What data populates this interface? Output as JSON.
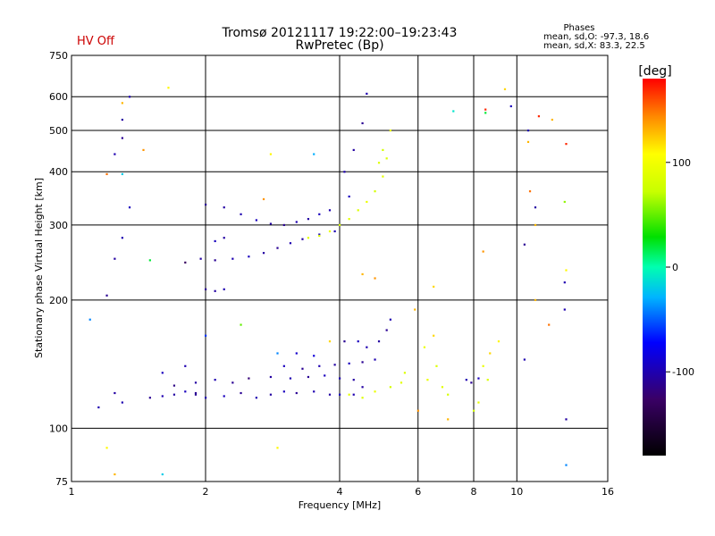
{
  "status_label": "HV Off",
  "colors": {
    "status": "#cc0000",
    "grid": "#000000"
  },
  "chart_data": {
    "type": "scatter",
    "title": "Tromsø 20121117 19:22:00–19:23:43",
    "subtitle": "RwPretec (Bp)",
    "xlabel": "Frequency [MHz]",
    "ylabel": "Stationary phase Virtual Height [km]",
    "x_scale": "log",
    "y_scale": "log",
    "xlim": [
      1,
      16
    ],
    "ylim": [
      75,
      750
    ],
    "x_ticks": [
      1,
      2,
      4,
      6,
      8,
      10,
      16
    ],
    "y_ticks": [
      75,
      100,
      200,
      300,
      400,
      500,
      600,
      750
    ],
    "grid": true,
    "stats": {
      "header": "Phases",
      "line_o": "mean, sd,O:  -97.3,  18.6",
      "line_x": "mean, sd,X:   83.3,  22.5"
    },
    "colorbar": {
      "label": "[deg]",
      "range": [
        -180,
        180
      ],
      "ticks": [
        100,
        0,
        -100
      ]
    },
    "series": [
      {
        "points": [
          {
            "f": 1.5,
            "h": 118,
            "p": -110
          },
          {
            "f": 1.6,
            "h": 119,
            "p": -100
          },
          {
            "f": 1.7,
            "h": 120,
            "p": -105
          },
          {
            "f": 1.8,
            "h": 122,
            "p": -95
          },
          {
            "f": 1.9,
            "h": 121,
            "p": -110
          },
          {
            "f": 2.0,
            "h": 118,
            "p": -100
          },
          {
            "f": 2.2,
            "h": 119,
            "p": -95
          },
          {
            "f": 2.4,
            "h": 121,
            "p": -110
          },
          {
            "f": 2.6,
            "h": 118,
            "p": -100
          },
          {
            "f": 2.8,
            "h": 120,
            "p": -105
          },
          {
            "f": 3.0,
            "h": 122,
            "p": -95
          },
          {
            "f": 3.2,
            "h": 121,
            "p": -110
          },
          {
            "f": 3.5,
            "h": 122,
            "p": -100
          },
          {
            "f": 3.8,
            "h": 120,
            "p": -105
          },
          {
            "f": 4.0,
            "h": 120,
            "p": -95
          },
          {
            "f": 1.7,
            "h": 126,
            "p": -115
          },
          {
            "f": 1.9,
            "h": 128,
            "p": -105
          },
          {
            "f": 2.1,
            "h": 130,
            "p": -100
          },
          {
            "f": 2.3,
            "h": 128,
            "p": -110
          },
          {
            "f": 2.5,
            "h": 131,
            "p": -120
          },
          {
            "f": 2.8,
            "h": 132,
            "p": -105
          },
          {
            "f": 3.1,
            "h": 131,
            "p": -100
          },
          {
            "f": 3.4,
            "h": 132,
            "p": -110
          },
          {
            "f": 3.7,
            "h": 133,
            "p": -95
          },
          {
            "f": 4.0,
            "h": 131,
            "p": -100
          },
          {
            "f": 4.3,
            "h": 130,
            "p": -105
          },
          {
            "f": 3.0,
            "h": 140,
            "p": -95
          },
          {
            "f": 3.3,
            "h": 138,
            "p": -110
          },
          {
            "f": 3.6,
            "h": 140,
            "p": -100
          },
          {
            "f": 3.9,
            "h": 141,
            "p": -105
          },
          {
            "f": 4.2,
            "h": 142,
            "p": -95
          },
          {
            "f": 4.5,
            "h": 143,
            "p": -110
          },
          {
            "f": 4.8,
            "h": 145,
            "p": -100
          },
          {
            "f": 3.2,
            "h": 150,
            "p": -90
          },
          {
            "f": 3.5,
            "h": 148,
            "p": -85
          },
          {
            "f": 4.6,
            "h": 155,
            "p": -100
          },
          {
            "f": 4.9,
            "h": 160,
            "p": -105
          },
          {
            "f": 5.1,
            "h": 170,
            "p": -110
          },
          {
            "f": 5.2,
            "h": 180,
            "p": -100
          },
          {
            "f": 1.6,
            "h": 135,
            "p": -95
          },
          {
            "f": 1.8,
            "h": 140,
            "p": -100
          },
          {
            "f": 1.9,
            "h": 120,
            "p": -110
          },
          {
            "f": 1.3,
            "h": 115,
            "p": -100
          },
          {
            "f": 1.15,
            "h": 112,
            "p": -100
          },
          {
            "f": 1.25,
            "h": 121,
            "p": -105
          },
          {
            "f": 4.1,
            "h": 160,
            "p": -110
          },
          {
            "f": 4.4,
            "h": 160,
            "p": -95
          },
          {
            "f": 1.95,
            "h": 250,
            "p": -105
          },
          {
            "f": 2.1,
            "h": 248,
            "p": -110
          },
          {
            "f": 2.3,
            "h": 250,
            "p": -100
          },
          {
            "f": 2.5,
            "h": 253,
            "p": -95
          },
          {
            "f": 2.7,
            "h": 258,
            "p": -105
          },
          {
            "f": 2.9,
            "h": 265,
            "p": -110
          },
          {
            "f": 3.1,
            "h": 272,
            "p": -100
          },
          {
            "f": 3.3,
            "h": 278,
            "p": -105
          },
          {
            "f": 3.6,
            "h": 285,
            "p": -95
          },
          {
            "f": 3.9,
            "h": 290,
            "p": -100
          },
          {
            "f": 2.0,
            "h": 335,
            "p": -110
          },
          {
            "f": 2.2,
            "h": 330,
            "p": -105
          },
          {
            "f": 2.4,
            "h": 318,
            "p": -100
          },
          {
            "f": 2.6,
            "h": 308,
            "p": -95
          },
          {
            "f": 2.8,
            "h": 302,
            "p": -105
          },
          {
            "f": 3.0,
            "h": 300,
            "p": -110
          },
          {
            "f": 3.2,
            "h": 305,
            "p": -100
          },
          {
            "f": 3.4,
            "h": 310,
            "p": -105
          },
          {
            "f": 3.6,
            "h": 318,
            "p": -95
          },
          {
            "f": 3.8,
            "h": 325,
            "p": -100
          },
          {
            "f": 2.0,
            "h": 212,
            "p": -110
          },
          {
            "f": 2.1,
            "h": 210,
            "p": -105
          },
          {
            "f": 2.2,
            "h": 212,
            "p": -100
          },
          {
            "f": 2.1,
            "h": 275,
            "p": -95
          },
          {
            "f": 2.2,
            "h": 280,
            "p": -105
          },
          {
            "f": 4.1,
            "h": 400,
            "p": -100
          },
          {
            "f": 4.3,
            "h": 450,
            "p": -105
          },
          {
            "f": 4.5,
            "h": 520,
            "p": -110
          },
          {
            "f": 4.6,
            "h": 610,
            "p": -100
          },
          {
            "f": 4.2,
            "h": 350,
            "p": -95
          },
          {
            "f": 1.35,
            "h": 600,
            "p": -100
          },
          {
            "f": 1.3,
            "h": 530,
            "p": -105
          },
          {
            "f": 1.3,
            "h": 480,
            "p": -110
          },
          {
            "f": 1.25,
            "h": 440,
            "p": -100
          },
          {
            "f": 1.35,
            "h": 330,
            "p": -95
          },
          {
            "f": 1.3,
            "h": 280,
            "p": -100
          },
          {
            "f": 1.25,
            "h": 250,
            "p": -105
          },
          {
            "f": 1.2,
            "h": 205,
            "p": -110
          },
          {
            "f": 4.3,
            "h": 120,
            "p": -100
          },
          {
            "f": 4.5,
            "h": 125,
            "p": -105
          },
          {
            "f": 7.7,
            "h": 130,
            "p": -100
          },
          {
            "f": 7.9,
            "h": 128,
            "p": -110
          },
          {
            "f": 8.2,
            "h": 131,
            "p": -95
          },
          {
            "f": 12.8,
            "h": 220,
            "p": -100
          },
          {
            "f": 12.9,
            "h": 105,
            "p": -105
          },
          {
            "f": 10.6,
            "h": 500,
            "p": -100
          },
          {
            "f": 10.4,
            "h": 270,
            "p": -110
          },
          {
            "f": 10.4,
            "h": 145,
            "p": -100
          },
          {
            "f": 9.7,
            "h": 570,
            "p": -95
          },
          {
            "f": 11.0,
            "h": 330,
            "p": -105
          },
          {
            "f": 12.8,
            "h": 190,
            "p": -100
          },
          {
            "f": 3.4,
            "h": 280,
            "p": 90
          },
          {
            "f": 3.6,
            "h": 283,
            "p": 85
          },
          {
            "f": 3.8,
            "h": 290,
            "p": 95
          },
          {
            "f": 4.0,
            "h": 300,
            "p": 80
          },
          {
            "f": 4.2,
            "h": 310,
            "p": 90
          },
          {
            "f": 4.4,
            "h": 325,
            "p": 85
          },
          {
            "f": 4.6,
            "h": 340,
            "p": 95
          },
          {
            "f": 4.8,
            "h": 360,
            "p": 80
          },
          {
            "f": 5.0,
            "h": 390,
            "p": 90
          },
          {
            "f": 5.1,
            "h": 430,
            "p": 85
          },
          {
            "f": 5.2,
            "h": 500,
            "p": 95
          },
          {
            "f": 5.0,
            "h": 450,
            "p": 80
          },
          {
            "f": 4.9,
            "h": 420,
            "p": 85
          },
          {
            "f": 4.2,
            "h": 120,
            "p": 90
          },
          {
            "f": 4.5,
            "h": 118,
            "p": 85
          },
          {
            "f": 4.8,
            "h": 122,
            "p": 95
          },
          {
            "f": 5.2,
            "h": 125,
            "p": 80
          },
          {
            "f": 5.5,
            "h": 128,
            "p": 90
          },
          {
            "f": 5.6,
            "h": 135,
            "p": 85
          },
          {
            "f": 6.3,
            "h": 130,
            "p": 95
          },
          {
            "f": 6.6,
            "h": 140,
            "p": 85
          },
          {
            "f": 6.8,
            "h": 125,
            "p": 90
          },
          {
            "f": 7.0,
            "h": 120,
            "p": 80
          },
          {
            "f": 8.4,
            "h": 140,
            "p": 95
          },
          {
            "f": 8.6,
            "h": 130,
            "p": 85
          },
          {
            "f": 8.2,
            "h": 115,
            "p": 90
          },
          {
            "f": 8.0,
            "h": 110,
            "p": 80
          },
          {
            "f": 6.2,
            "h": 155,
            "p": 95
          },
          {
            "f": 5.9,
            "h": 190,
            "p": 130
          },
          {
            "f": 6.5,
            "h": 165,
            "p": 120
          },
          {
            "f": 7.0,
            "h": 105,
            "p": 130
          },
          {
            "f": 1.65,
            "h": 630,
            "p": 110
          },
          {
            "f": 1.3,
            "h": 580,
            "p": 130
          },
          {
            "f": 1.45,
            "h": 450,
            "p": 140
          },
          {
            "f": 1.2,
            "h": 395,
            "p": 150
          },
          {
            "f": 2.8,
            "h": 440,
            "p": 110
          },
          {
            "f": 2.7,
            "h": 345,
            "p": 140
          },
          {
            "f": 1.2,
            "h": 90,
            "p": 110
          },
          {
            "f": 1.25,
            "h": 78,
            "p": 130
          },
          {
            "f": 1.6,
            "h": 78,
            "p": -20
          },
          {
            "f": 2.9,
            "h": 90,
            "p": 110
          },
          {
            "f": 1.1,
            "h": 180,
            "p": -40
          },
          {
            "f": 1.3,
            "h": 395,
            "p": -20
          },
          {
            "f": 3.5,
            "h": 440,
            "p": -30
          },
          {
            "f": 4.8,
            "h": 225,
            "p": 140
          },
          {
            "f": 6.5,
            "h": 215,
            "p": 120
          },
          {
            "f": 7.2,
            "h": 555,
            "p": -10
          },
          {
            "f": 8.5,
            "h": 560,
            "p": 170
          },
          {
            "f": 8.5,
            "h": 550,
            "p": 20
          },
          {
            "f": 9.4,
            "h": 625,
            "p": 120
          },
          {
            "f": 10.6,
            "h": 470,
            "p": 130
          },
          {
            "f": 10.7,
            "h": 360,
            "p": 150
          },
          {
            "f": 11.0,
            "h": 300,
            "p": 130
          },
          {
            "f": 11.2,
            "h": 540,
            "p": 170
          },
          {
            "f": 12.0,
            "h": 530,
            "p": 130
          },
          {
            "f": 12.9,
            "h": 465,
            "p": 170
          },
          {
            "f": 12.8,
            "h": 340,
            "p": 60
          },
          {
            "f": 12.9,
            "h": 235,
            "p": 110
          },
          {
            "f": 12.9,
            "h": 82,
            "p": -40
          },
          {
            "f": 11.0,
            "h": 200,
            "p": 130
          },
          {
            "f": 11.8,
            "h": 175,
            "p": 150
          },
          {
            "f": 8.4,
            "h": 260,
            "p": 140
          },
          {
            "f": 8.7,
            "h": 150,
            "p": 120
          },
          {
            "f": 9.1,
            "h": 160,
            "p": 110
          },
          {
            "f": 4.5,
            "h": 230,
            "p": 130
          },
          {
            "f": 2.9,
            "h": 150,
            "p": -40
          },
          {
            "f": 2.0,
            "h": 165,
            "p": -60
          },
          {
            "f": 2.4,
            "h": 175,
            "p": 50
          },
          {
            "f": 3.8,
            "h": 160,
            "p": 120
          },
          {
            "f": 6.0,
            "h": 110,
            "p": 140
          },
          {
            "f": 1.5,
            "h": 248,
            "p": 20
          },
          {
            "f": 1.8,
            "h": 245,
            "p": -130
          }
        ]
      }
    ]
  }
}
